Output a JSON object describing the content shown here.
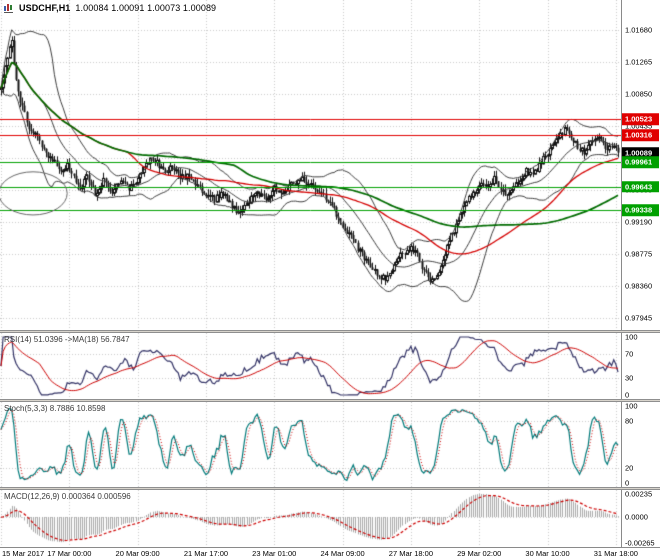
{
  "header": {
    "symbol": "USDCHF,H1",
    "ohlc": "1.00084 1.00091 1.00073 1.00089"
  },
  "indicator_labels": {
    "rsi": "RSI(14) 51.0396 ->MA(18) 56.7847",
    "stoch": "Stoch(5,3,3) 8.7886 10.8598",
    "macd": "MACD(12,26,9) 0.000364 0.000596"
  },
  "chart_data": {
    "type": "candlestick",
    "title": "USDCHF,H1",
    "bars": 290,
    "last_price": 1.00089,
    "y_axis": {
      "min": 0.978,
      "max": 1.01875
    },
    "price_axis_ticks": [
      {
        "label": "1.01680",
        "value": 1.0168
      },
      {
        "label": "1.01265",
        "value": 1.01265
      },
      {
        "label": "1.00850",
        "value": 1.0085
      },
      {
        "label": "1.00435",
        "value": 1.00435
      },
      {
        "label": "1.00020",
        "value": 1.0002
      },
      {
        "label": "0.99605",
        "value": 0.99605
      },
      {
        "label": "0.99190",
        "value": 0.9919
      },
      {
        "label": "0.98775",
        "value": 0.98775
      },
      {
        "label": "0.98360",
        "value": 0.9836
      },
      {
        "label": "0.97945",
        "value": 0.97945
      }
    ],
    "time_ticks": [
      {
        "label": "15 Mar 2017",
        "bar": 0
      },
      {
        "label": "17 Mar 00:00",
        "bar": 32
      },
      {
        "label": "20 Mar 09:00",
        "bar": 64
      },
      {
        "label": "21 Mar 17:00",
        "bar": 96
      },
      {
        "label": "23 Mar 01:00",
        "bar": 128
      },
      {
        "label": "24 Mar 09:00",
        "bar": 160
      },
      {
        "label": "27 Mar 18:00",
        "bar": 192
      },
      {
        "label": "29 Mar 02:00",
        "bar": 224
      },
      {
        "label": "30 Mar 10:00",
        "bar": 256
      },
      {
        "label": "31 Mar 18:00",
        "bar": 288
      }
    ],
    "close_waypoints": [
      [
        0,
        1.0092
      ],
      [
        2,
        1.0118
      ],
      [
        4,
        1.015
      ],
      [
        5,
        1.0158
      ],
      [
        6,
        1.012
      ],
      [
        8,
        1.0085
      ],
      [
        10,
        1.0068
      ],
      [
        13,
        1.004
      ],
      [
        16,
        1.0035
      ],
      [
        19,
        1.0018
      ],
      [
        22,
        1.0005
      ],
      [
        25,
        0.9998
      ],
      [
        28,
        0.9985
      ],
      [
        31,
        0.9992
      ],
      [
        34,
        0.998
      ],
      [
        37,
        0.996
      ],
      [
        40,
        0.9978
      ],
      [
        44,
        0.9955
      ],
      [
        48,
        0.9972
      ],
      [
        52,
        0.9958
      ],
      [
        56,
        0.997
      ],
      [
        60,
        0.9962
      ],
      [
        64,
        0.9975
      ],
      [
        67,
        0.9992
      ],
      [
        70,
        1.0002
      ],
      [
        73,
        0.9995
      ],
      [
        76,
        0.9985
      ],
      [
        80,
        0.999
      ],
      [
        84,
        0.9975
      ],
      [
        88,
        0.9982
      ],
      [
        92,
        0.9965
      ],
      [
        96,
        0.9955
      ],
      [
        100,
        0.9948
      ],
      [
        104,
        0.9958
      ],
      [
        108,
        0.9938
      ],
      [
        112,
        0.993
      ],
      [
        116,
        0.9945
      ],
      [
        120,
        0.9958
      ],
      [
        124,
        0.995
      ],
      [
        128,
        0.9962
      ],
      [
        132,
        0.9955
      ],
      [
        136,
        0.997
      ],
      [
        140,
        0.9975
      ],
      [
        144,
        0.9968
      ],
      [
        148,
        0.996
      ],
      [
        152,
        0.995
      ],
      [
        156,
        0.9935
      ],
      [
        160,
        0.9915
      ],
      [
        164,
        0.99
      ],
      [
        168,
        0.988
      ],
      [
        172,
        0.9865
      ],
      [
        176,
        0.985
      ],
      [
        180,
        0.9845
      ],
      [
        183,
        0.9855
      ],
      [
        186,
        0.9875
      ],
      [
        189,
        0.988
      ],
      [
        192,
        0.9885
      ],
      [
        195,
        0.9875
      ],
      [
        198,
        0.9855
      ],
      [
        201,
        0.9845
      ],
      [
        204,
        0.985
      ],
      [
        207,
        0.987
      ],
      [
        210,
        0.9895
      ],
      [
        213,
        0.9915
      ],
      [
        216,
        0.9935
      ],
      [
        219,
        0.995
      ],
      [
        222,
        0.996
      ],
      [
        225,
        0.997
      ],
      [
        228,
        0.9965
      ],
      [
        231,
        0.9975
      ],
      [
        234,
        0.996
      ],
      [
        237,
        0.995
      ],
      [
        240,
        0.9962
      ],
      [
        243,
        0.9975
      ],
      [
        246,
        0.9985
      ],
      [
        249,
        0.998
      ],
      [
        252,
        0.9992
      ],
      [
        255,
        1.0005
      ],
      [
        258,
        1.0015
      ],
      [
        261,
        1.0028
      ],
      [
        264,
        1.0038
      ],
      [
        267,
        1.003
      ],
      [
        270,
        1.0018
      ],
      [
        273,
        1.0008
      ],
      [
        276,
        1.002
      ],
      [
        279,
        1.003
      ],
      [
        282,
        1.0022
      ],
      [
        284,
        1.0012
      ],
      [
        286,
        1.0018
      ],
      [
        289,
        1.00089
      ]
    ],
    "noise": {
      "seed": 7,
      "close_amp": 0.00042,
      "wick_amp": 0.0008
    },
    "colors": {
      "candle": "#141414",
      "grid": "#c9c9c9",
      "band": "#3c3c3c",
      "up_body": "#ffffff",
      "down_body": "#141414"
    },
    "overlays": {
      "bollinger": {
        "period": 20,
        "deviation": 2,
        "color": "#3c3c3c"
      },
      "ma_red": {
        "period": 60,
        "color": "#d40000"
      },
      "ma_green": {
        "period": 110,
        "color": "#006b00"
      }
    },
    "h_lines": [
      {
        "price": 1.00523,
        "color": "#e00000"
      },
      {
        "price": 1.00316,
        "color": "#e00000"
      },
      {
        "price": 0.99961,
        "color": "#00a000"
      },
      {
        "price": 0.99643,
        "color": "#00a000"
      },
      {
        "price": 0.99338,
        "color": "#00a000"
      }
    ],
    "price_badges": [
      {
        "text": "1.00523",
        "price": 1.00523,
        "bg": "#e00000"
      },
      {
        "text": "1.00316",
        "price": 1.00316,
        "bg": "#e00000"
      },
      {
        "text": "1.00089",
        "price": 1.00089,
        "bg": "#000000"
      },
      {
        "text": "0.99961",
        "price": 0.99961,
        "bg": "#00a000"
      },
      {
        "text": "0.99643",
        "price": 0.99643,
        "bg": "#00a000"
      },
      {
        "text": "0.99338",
        "price": 0.99338,
        "bg": "#00a000"
      }
    ],
    "ellipse": {
      "bar_center": 15,
      "bar_radius": 16,
      "price_center": 0.9956,
      "price_radius": 0.0028,
      "color": "#666666"
    },
    "indicators": {
      "rsi": {
        "period": 14,
        "ma_period": 18,
        "current": 51.0396,
        "ma_current": 56.7847,
        "levels": [
          70,
          30
        ],
        "line_color": "#333366",
        "ma_color": "#cc0000",
        "axis_ticks": [
          {
            "label": "100",
            "value": 100
          },
          {
            "label": "70",
            "value": 70
          },
          {
            "label": "30",
            "value": 30
          },
          {
            "label": "0",
            "value": 0
          }
        ]
      },
      "stoch": {
        "k": 5,
        "d": 3,
        "slowing": 3,
        "current": 8.7886,
        "signal_current": 10.8598,
        "levels": [
          80,
          20
        ],
        "line_color": "#007a7a",
        "signal_color": "#cc0000",
        "axis_ticks": [
          {
            "label": "100",
            "value": 100
          },
          {
            "label": "80",
            "value": 80
          },
          {
            "label": "20",
            "value": 20
          },
          {
            "label": "0",
            "value": 0
          }
        ]
      },
      "macd": {
        "fast": 12,
        "slow": 26,
        "signal": 9,
        "current": 0.000364,
        "signal_current": 0.000596,
        "axis_max": 0.00235,
        "axis_min": -0.00265,
        "hist_color": "#a8a8a8",
        "signal_color": "#cc0000",
        "axis_ticks": [
          {
            "label": "0.00235",
            "value": 0.00235
          },
          {
            "label": "0.0000",
            "value": 0
          },
          {
            "label": "-0.00265",
            "value": -0.00265
          }
        ]
      }
    }
  }
}
